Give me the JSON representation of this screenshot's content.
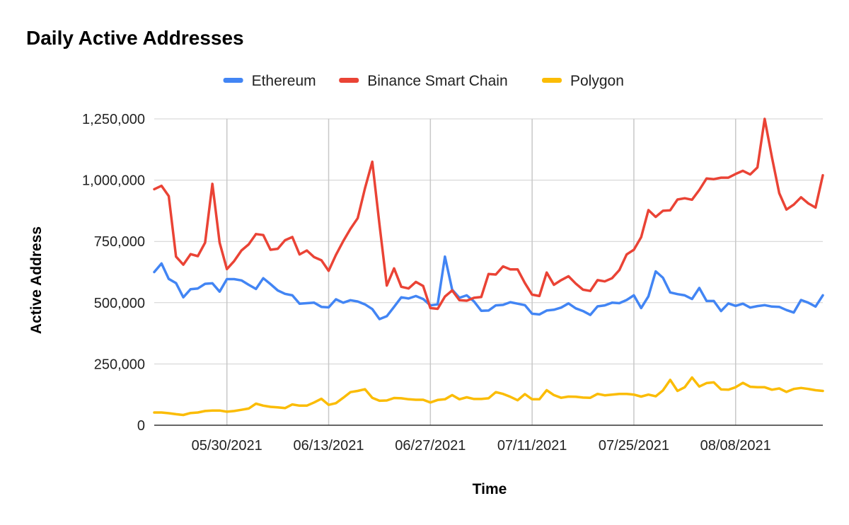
{
  "chart_data": {
    "type": "line",
    "title": "Daily Active Addresses",
    "xlabel": "Time",
    "ylabel": "Active Address",
    "ylim": [
      0,
      1250000
    ],
    "y_ticks": [
      "0",
      "250,000",
      "500,000",
      "750,000",
      "1,000,000",
      "1,250,000"
    ],
    "x_range": [
      "2021-05-20",
      "2021-08-20"
    ],
    "x_tick_dates": [
      "2021-05-30",
      "2021-06-13",
      "2021-06-27",
      "2021-07-11",
      "2021-07-25",
      "2021-08-08"
    ],
    "x_tick_labels": [
      "05/30/2021",
      "06/13/2021",
      "06/27/2021",
      "07/11/2021",
      "07/25/2021",
      "08/08/2021"
    ],
    "legend_position": "top",
    "grid": "vertical",
    "colors": {
      "Ethereum": "#4285F4",
      "Binance Smart Chain": "#EA4335",
      "Polygon": "#FBBC04"
    },
    "series": [
      {
        "name": "Ethereum",
        "values": [
          625000,
          660000,
          597000,
          580000,
          522000,
          555000,
          558000,
          577000,
          579000,
          545000,
          596000,
          596000,
          591000,
          573000,
          556000,
          600000,
          576000,
          550000,
          536000,
          530000,
          496000,
          498000,
          500000,
          483000,
          481000,
          514000,
          500000,
          510000,
          505000,
          493000,
          474000,
          433000,
          445000,
          483000,
          522000,
          517000,
          527000,
          515000,
          489000,
          493000,
          688000,
          553000,
          520000,
          530000,
          505000,
          467000,
          468000,
          489000,
          491000,
          502000,
          496000,
          490000,
          455000,
          452000,
          468000,
          471000,
          480000,
          497000,
          477000,
          466000,
          450000,
          485000,
          489000,
          500000,
          498000,
          511000,
          530000,
          478000,
          526000,
          628000,
          602000,
          542000,
          535000,
          530000,
          515000,
          560000,
          507000,
          507000,
          466000,
          497000,
          487000,
          496000,
          480000,
          486000,
          490000,
          484000,
          483000,
          470000,
          460000,
          511000,
          500000,
          484000,
          530000
        ]
      },
      {
        "name": "Binance Smart Chain",
        "values": [
          963000,
          977000,
          935000,
          688000,
          655000,
          698000,
          690000,
          745000,
          985000,
          745000,
          637000,
          670000,
          713000,
          738000,
          780000,
          776000,
          716000,
          720000,
          755000,
          768000,
          697000,
          713000,
          686000,
          673000,
          630000,
          695000,
          751000,
          801000,
          845000,
          967000,
          1075000,
          818000,
          570000,
          640000,
          565000,
          558000,
          585000,
          568000,
          478000,
          475000,
          525000,
          550000,
          510000,
          508000,
          520000,
          523000,
          617000,
          615000,
          648000,
          636000,
          636000,
          580000,
          533000,
          527000,
          623000,
          573000,
          592000,
          608000,
          578000,
          553000,
          548000,
          592000,
          587000,
          600000,
          633000,
          697000,
          716000,
          767000,
          878000,
          850000,
          875000,
          877000,
          921000,
          926000,
          920000,
          960000,
          1007000,
          1004000,
          1010000,
          1010000,
          1025000,
          1038000,
          1023000,
          1052000,
          1250000,
          1093000,
          947000,
          880000,
          900000,
          930000,
          905000,
          888000,
          1020000
        ]
      },
      {
        "name": "Polygon",
        "values": [
          52000,
          52000,
          49000,
          45000,
          42000,
          50000,
          52000,
          58000,
          60000,
          60000,
          55000,
          58000,
          63000,
          68000,
          88000,
          80000,
          75000,
          73000,
          70000,
          85000,
          80000,
          80000,
          93000,
          108000,
          83000,
          90000,
          112000,
          135000,
          140000,
          147000,
          112000,
          100000,
          101000,
          111000,
          110000,
          106000,
          104000,
          104000,
          93000,
          103000,
          106000,
          123000,
          106000,
          114000,
          107000,
          107000,
          110000,
          135000,
          128000,
          116000,
          102000,
          127000,
          106000,
          106000,
          143000,
          123000,
          112000,
          117000,
          116000,
          113000,
          112000,
          128000,
          122000,
          125000,
          128000,
          128000,
          125000,
          117000,
          125000,
          118000,
          142000,
          185000,
          140000,
          155000,
          195000,
          158000,
          172000,
          175000,
          146000,
          145000,
          155000,
          173000,
          157000,
          155000,
          155000,
          145000,
          150000,
          136000,
          148000,
          152000,
          148000,
          143000,
          140000
        ]
      }
    ]
  }
}
